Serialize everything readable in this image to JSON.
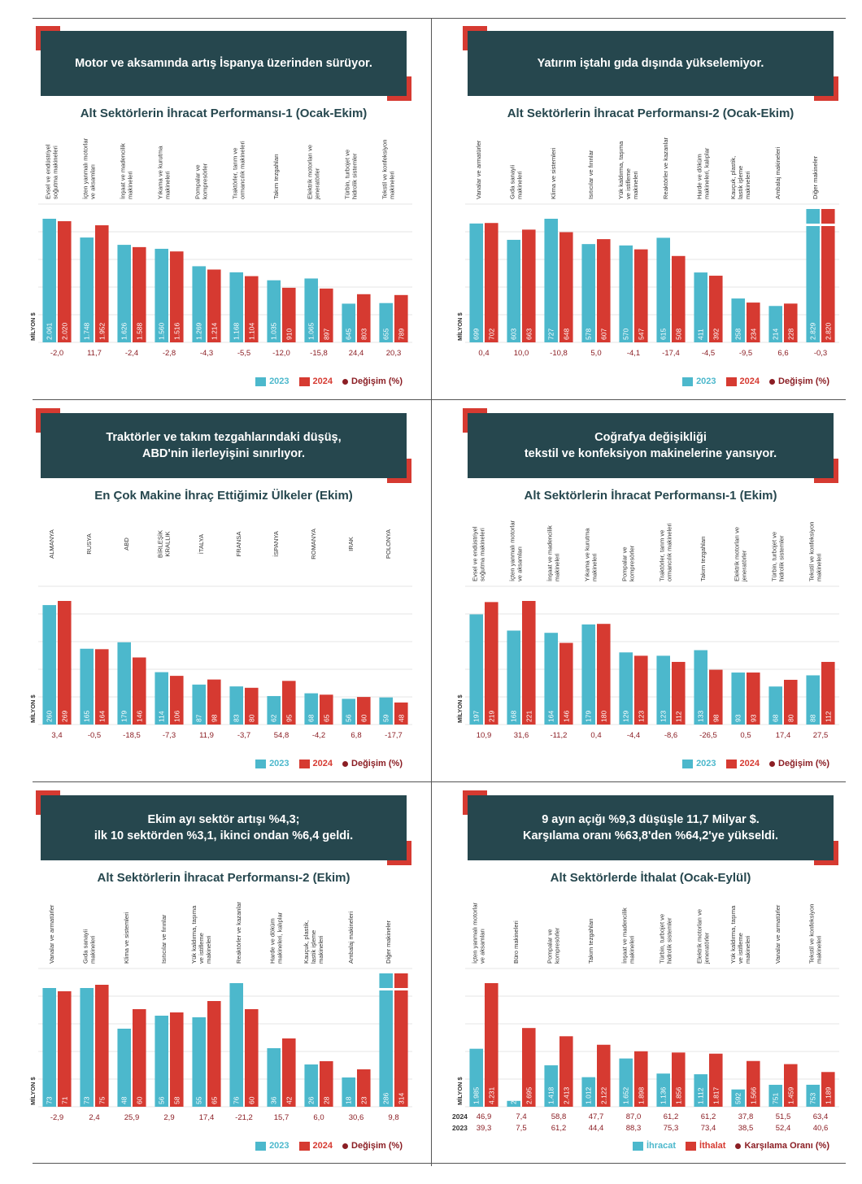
{
  "colors": {
    "y2023": "#4cb8cc",
    "y2024": "#d63a31",
    "change": "#8b1e24",
    "banner": "#26474e"
  },
  "legend": {
    "a": "2023",
    "b": "2024",
    "change": "Değişim (%)",
    "import_a": "İhracat",
    "import_b": "İthalat",
    "import_change": "Karşılama Oranı (%)"
  },
  "ylabel": "MİLYON $",
  "panels": [
    {
      "banner": [
        "Motor ve aksamında artış İspanya üzerinden sürüyor."
      ],
      "title": "Alt Sektörlerin İhracat Performansı-1 (Ocak-Ekim)"
    },
    {
      "banner": [
        "Yatırım iştahı gıda dışında yükselemiyor."
      ],
      "title": "Alt Sektörlerin İhracat Performansı-2 (Ocak-Ekim)"
    },
    {
      "banner": [
        "Traktörler ve takım tezgahlarındaki düşüş,",
        "ABD'nin ilerleyişini sınırlıyor."
      ],
      "title": "En Çok Makine İhraç Ettiğimiz Ülkeler (Ekim)"
    },
    {
      "banner": [
        "Coğrafya değişikliği",
        "tekstil ve konfeksiyon makinelerine yansıyor."
      ],
      "title": "Alt Sektörlerin İhracat Performansı-1 (Ekim)"
    },
    {
      "banner": [
        "Ekim ayı sektör artışı %4,3;",
        "ilk 10 sektörden %3,1, ikinci ondan %6,4 geldi."
      ],
      "title": "Alt Sektörlerin İhracat Performansı-2 (Ekim)"
    },
    {
      "banner": [
        "9 ayın açığı %9,3 düşüşle 11,7 Milyar $.",
        "Karşılama oranı %63,8'den %64,2'ye yükseldi."
      ],
      "title": "Alt Sektörlerde İthalat (Ocak-Eylül)"
    }
  ],
  "chart_data": [
    {
      "type": "bar",
      "title": "Alt Sektörlerin İhracat Performansı-1 (Ocak-Ekim)",
      "ylabel": "MİLYON $",
      "categories": [
        "Evsel ve endüstriyel soğutma makineleri",
        "İçten yanmalı motorlar ve aksamları",
        "İnşaat ve madencilik makineleri",
        "Yıkama ve kurutma makineleri",
        "Pompalar ve kompresörler",
        "Traktörler, tarım ve ormancılık makineleri",
        "Takım tezgahları",
        "Elektrik motorları ve jeneratörler",
        "Türbin, turbojet ve hidrolik sistemler",
        "Tekstil ve konfeksiyon makineleri"
      ],
      "series": [
        {
          "name": "2023",
          "labels": [
            "2.061",
            "1.748",
            "1.626",
            "1.560",
            "1.269",
            "1.168",
            "1.035",
            "1.065",
            "645",
            "655"
          ],
          "values": [
            2061,
            1748,
            1626,
            1560,
            1269,
            1168,
            1035,
            1065,
            645,
            655
          ]
        },
        {
          "name": "2024",
          "labels": [
            "2.020",
            "1.952",
            "1.588",
            "1.516",
            "1.214",
            "1.104",
            "910",
            "897",
            "803",
            "789"
          ],
          "values": [
            2020,
            1952,
            1588,
            1516,
            1214,
            1104,
            910,
            897,
            803,
            789
          ]
        }
      ],
      "change_label": "Değişim (%)",
      "change": [
        "-2,0",
        "11,7",
        "-2,4",
        "-2,8",
        "-4,3",
        "-5,5",
        "-12,0",
        "-15,8",
        "24,4",
        "20,3"
      ],
      "legend_position": "bottom-right",
      "grid": true
    },
    {
      "type": "bar",
      "title": "Alt Sektörlerin İhracat Performansı-2 (Ocak-Ekim)",
      "ylabel": "MİLYON $",
      "categories": [
        "Vanalar ve armatürler",
        "Gıda sanayii makineleri",
        "Klima ve sistemleri",
        "Isıtıcılar ve fırınlar",
        "Yük kaldırma, taşıma ve istifleme makineleri",
        "Reaktörler ve kazanlar",
        "Harde ve döküm makineleri, kalıplar",
        "Kauçuk, plastik, lastik işleme makineleri",
        "Ambalaj makineleri",
        "Diğer makineler"
      ],
      "series": [
        {
          "name": "2023",
          "labels": [
            "699",
            "603",
            "727",
            "578",
            "570",
            "615",
            "411",
            "258",
            "214",
            "2.829"
          ],
          "values": [
            699,
            603,
            727,
            578,
            570,
            615,
            411,
            258,
            214,
            2829
          ]
        },
        {
          "name": "2024",
          "labels": [
            "702",
            "663",
            "648",
            "607",
            "547",
            "508",
            "392",
            "234",
            "228",
            "2.820"
          ],
          "values": [
            702,
            663,
            648,
            607,
            547,
            508,
            392,
            234,
            228,
            2820
          ]
        }
      ],
      "change_label": "Değişim (%)",
      "change": [
        "0,4",
        "10,0",
        "-10,8",
        "5,0",
        "-4,1",
        "-17,4",
        "-4,5",
        "-9,5",
        "6,6",
        "-0,3"
      ],
      "broken_axis_last": true,
      "legend_position": "bottom-right",
      "grid": true
    },
    {
      "type": "bar",
      "title": "En Çok Makine İhraç Ettiğimiz Ülkeler (Ekim)",
      "ylabel": "MİLYON $",
      "categories": [
        "ALMANYA",
        "RUSYA",
        "ABD",
        "BİRLEŞİK KRALLIK",
        "İTALYA",
        "FRANSA",
        "İSPANYA",
        "ROMANYA",
        "IRAK",
        "POLONYA"
      ],
      "series": [
        {
          "name": "2023",
          "labels": [
            "260",
            "165",
            "179",
            "114",
            "87",
            "83",
            "62",
            "68",
            "56",
            "59"
          ],
          "values": [
            260,
            165,
            179,
            114,
            87,
            83,
            62,
            68,
            56,
            59
          ]
        },
        {
          "name": "2024",
          "labels": [
            "269",
            "164",
            "146",
            "106",
            "98",
            "80",
            "95",
            "65",
            "60",
            "48"
          ],
          "values": [
            269,
            164,
            146,
            106,
            98,
            80,
            95,
            65,
            60,
            48
          ]
        }
      ],
      "change_label": "Değişim (%)",
      "change": [
        "3,4",
        "-0,5",
        "-18,5",
        "-7,3",
        "11,9",
        "-3,7",
        "54,8",
        "-4,2",
        "6,8",
        "-17,7"
      ],
      "legend_position": "bottom-right",
      "grid": true
    },
    {
      "type": "bar",
      "title": "Alt Sektörlerin İhracat Performansı-1 (Ekim)",
      "ylabel": "MİLYON $",
      "categories": [
        "Evsel ve endüstriyel soğutma makineleri",
        "İçten yanmalı motorlar ve aksamları",
        "İnşaat ve madencilik makineleri",
        "Yıkama ve kurutma makineleri",
        "Pompalar ve kompresörler",
        "Traktörler, tarım ve ormancılık makineleri",
        "Takım tezgahları",
        "Elektrik motorları ve jeneratörler",
        "Türbin, turbojet ve hidrolik sistemler",
        "Tekstil ve konfeksiyon makineleri"
      ],
      "series": [
        {
          "name": "2023",
          "labels": [
            "197",
            "168",
            "164",
            "179",
            "129",
            "123",
            "133",
            "93",
            "68",
            "88"
          ],
          "values": [
            197,
            168,
            164,
            179,
            129,
            123,
            133,
            93,
            68,
            88
          ]
        },
        {
          "name": "2024",
          "labels": [
            "219",
            "221",
            "146",
            "180",
            "123",
            "112",
            "98",
            "93",
            "80",
            "112"
          ],
          "values": [
            219,
            221,
            146,
            180,
            123,
            112,
            98,
            93,
            80,
            112
          ]
        }
      ],
      "change_label": "Değişim (%)",
      "change": [
        "10,9",
        "31,6",
        "-11,2",
        "0,4",
        "-4,4",
        "-8,6",
        "-26,5",
        "0,5",
        "17,4",
        "27,5"
      ],
      "legend_position": "bottom-right",
      "grid": true
    },
    {
      "type": "bar",
      "title": "Alt Sektörlerin İhracat Performansı-2 (Ekim)",
      "ylabel": "MİLYON $",
      "categories": [
        "Vanalar ve armatürler",
        "Gıda sanayii makineleri",
        "Klima ve sistemleri",
        "Isıtıcılar ve fırınlar",
        "Yük kaldırma, taşıma ve istifleme makineleri",
        "Reaktörler ve kazanlar",
        "Harde ve döküm makineleri, kalıplar",
        "Kauçuk, plastik, lastik işleme makineleri",
        "Ambalaj makineleri",
        "Diğer makineler"
      ],
      "series": [
        {
          "name": "2023",
          "labels": [
            "73",
            "73",
            "48",
            "56",
            "55",
            "76",
            "36",
            "26",
            "18",
            "286"
          ],
          "values": [
            73,
            73,
            48,
            56,
            55,
            76,
            36,
            26,
            18,
            286
          ]
        },
        {
          "name": "2024",
          "labels": [
            "71",
            "75",
            "60",
            "58",
            "65",
            "60",
            "42",
            "28",
            "23",
            "314"
          ],
          "values": [
            71,
            75,
            60,
            58,
            65,
            60,
            42,
            28,
            23,
            314
          ]
        }
      ],
      "change_label": "Değişim (%)",
      "change": [
        "-2,9",
        "2,4",
        "25,9",
        "2,9",
        "17,4",
        "-21,2",
        "15,7",
        "6,0",
        "30,6",
        "9,8"
      ],
      "broken_axis_last": true,
      "legend_position": "bottom-right",
      "grid": true
    },
    {
      "type": "bar",
      "title": "Alt Sektörlerde İthalat (Ocak-Eylül)",
      "ylabel": "MİLYON $",
      "categories": [
        "İçten yanmalı motorlar ve aksamları",
        "Büro makineleri",
        "Pompalar ve kompresörler",
        "Takım tezgahları",
        "İnşaat ve madencilik makineleri",
        "Türbin, turbojet ve hidrolik sistemler",
        "Elektrik motorları ve jeneratörler",
        "Yük kaldırma, taşıma ve istifleme makineleri",
        "Vanalar ve armatürler",
        "Tekstil ve konfeksiyon makineleri"
      ],
      "series": [
        {
          "name": "İhracat",
          "labels": [
            "1.985",
            "201",
            "1.418",
            "1.012",
            "1.652",
            "1.136",
            "1.112",
            "592",
            "751",
            "753"
          ],
          "values": [
            1985,
            201,
            1418,
            1012,
            1652,
            1136,
            1112,
            592,
            751,
            753
          ]
        },
        {
          "name": "İthalat",
          "labels": [
            "4.231",
            "2.695",
            "2.413",
            "2.122",
            "1.898",
            "1.856",
            "1.817",
            "1.566",
            "1.459",
            "1.189"
          ],
          "values": [
            4231,
            2695,
            2413,
            2122,
            1898,
            1856,
            1817,
            1566,
            1459,
            1189
          ]
        }
      ],
      "change_label": "Karşılama Oranı (%)",
      "change_rows": [
        {
          "year": "2024",
          "values": [
            "46,9",
            "7,4",
            "58,8",
            "47,7",
            "87,0",
            "61,2",
            "61,2",
            "37,8",
            "51,5",
            "63,4"
          ]
        },
        {
          "year": "2023",
          "values": [
            "39,3",
            "7,5",
            "61,2",
            "44,4",
            "88,3",
            "75,3",
            "73,4",
            "38,5",
            "52,4",
            "40,6"
          ]
        }
      ],
      "legend_position": "bottom-right",
      "grid": true
    }
  ]
}
